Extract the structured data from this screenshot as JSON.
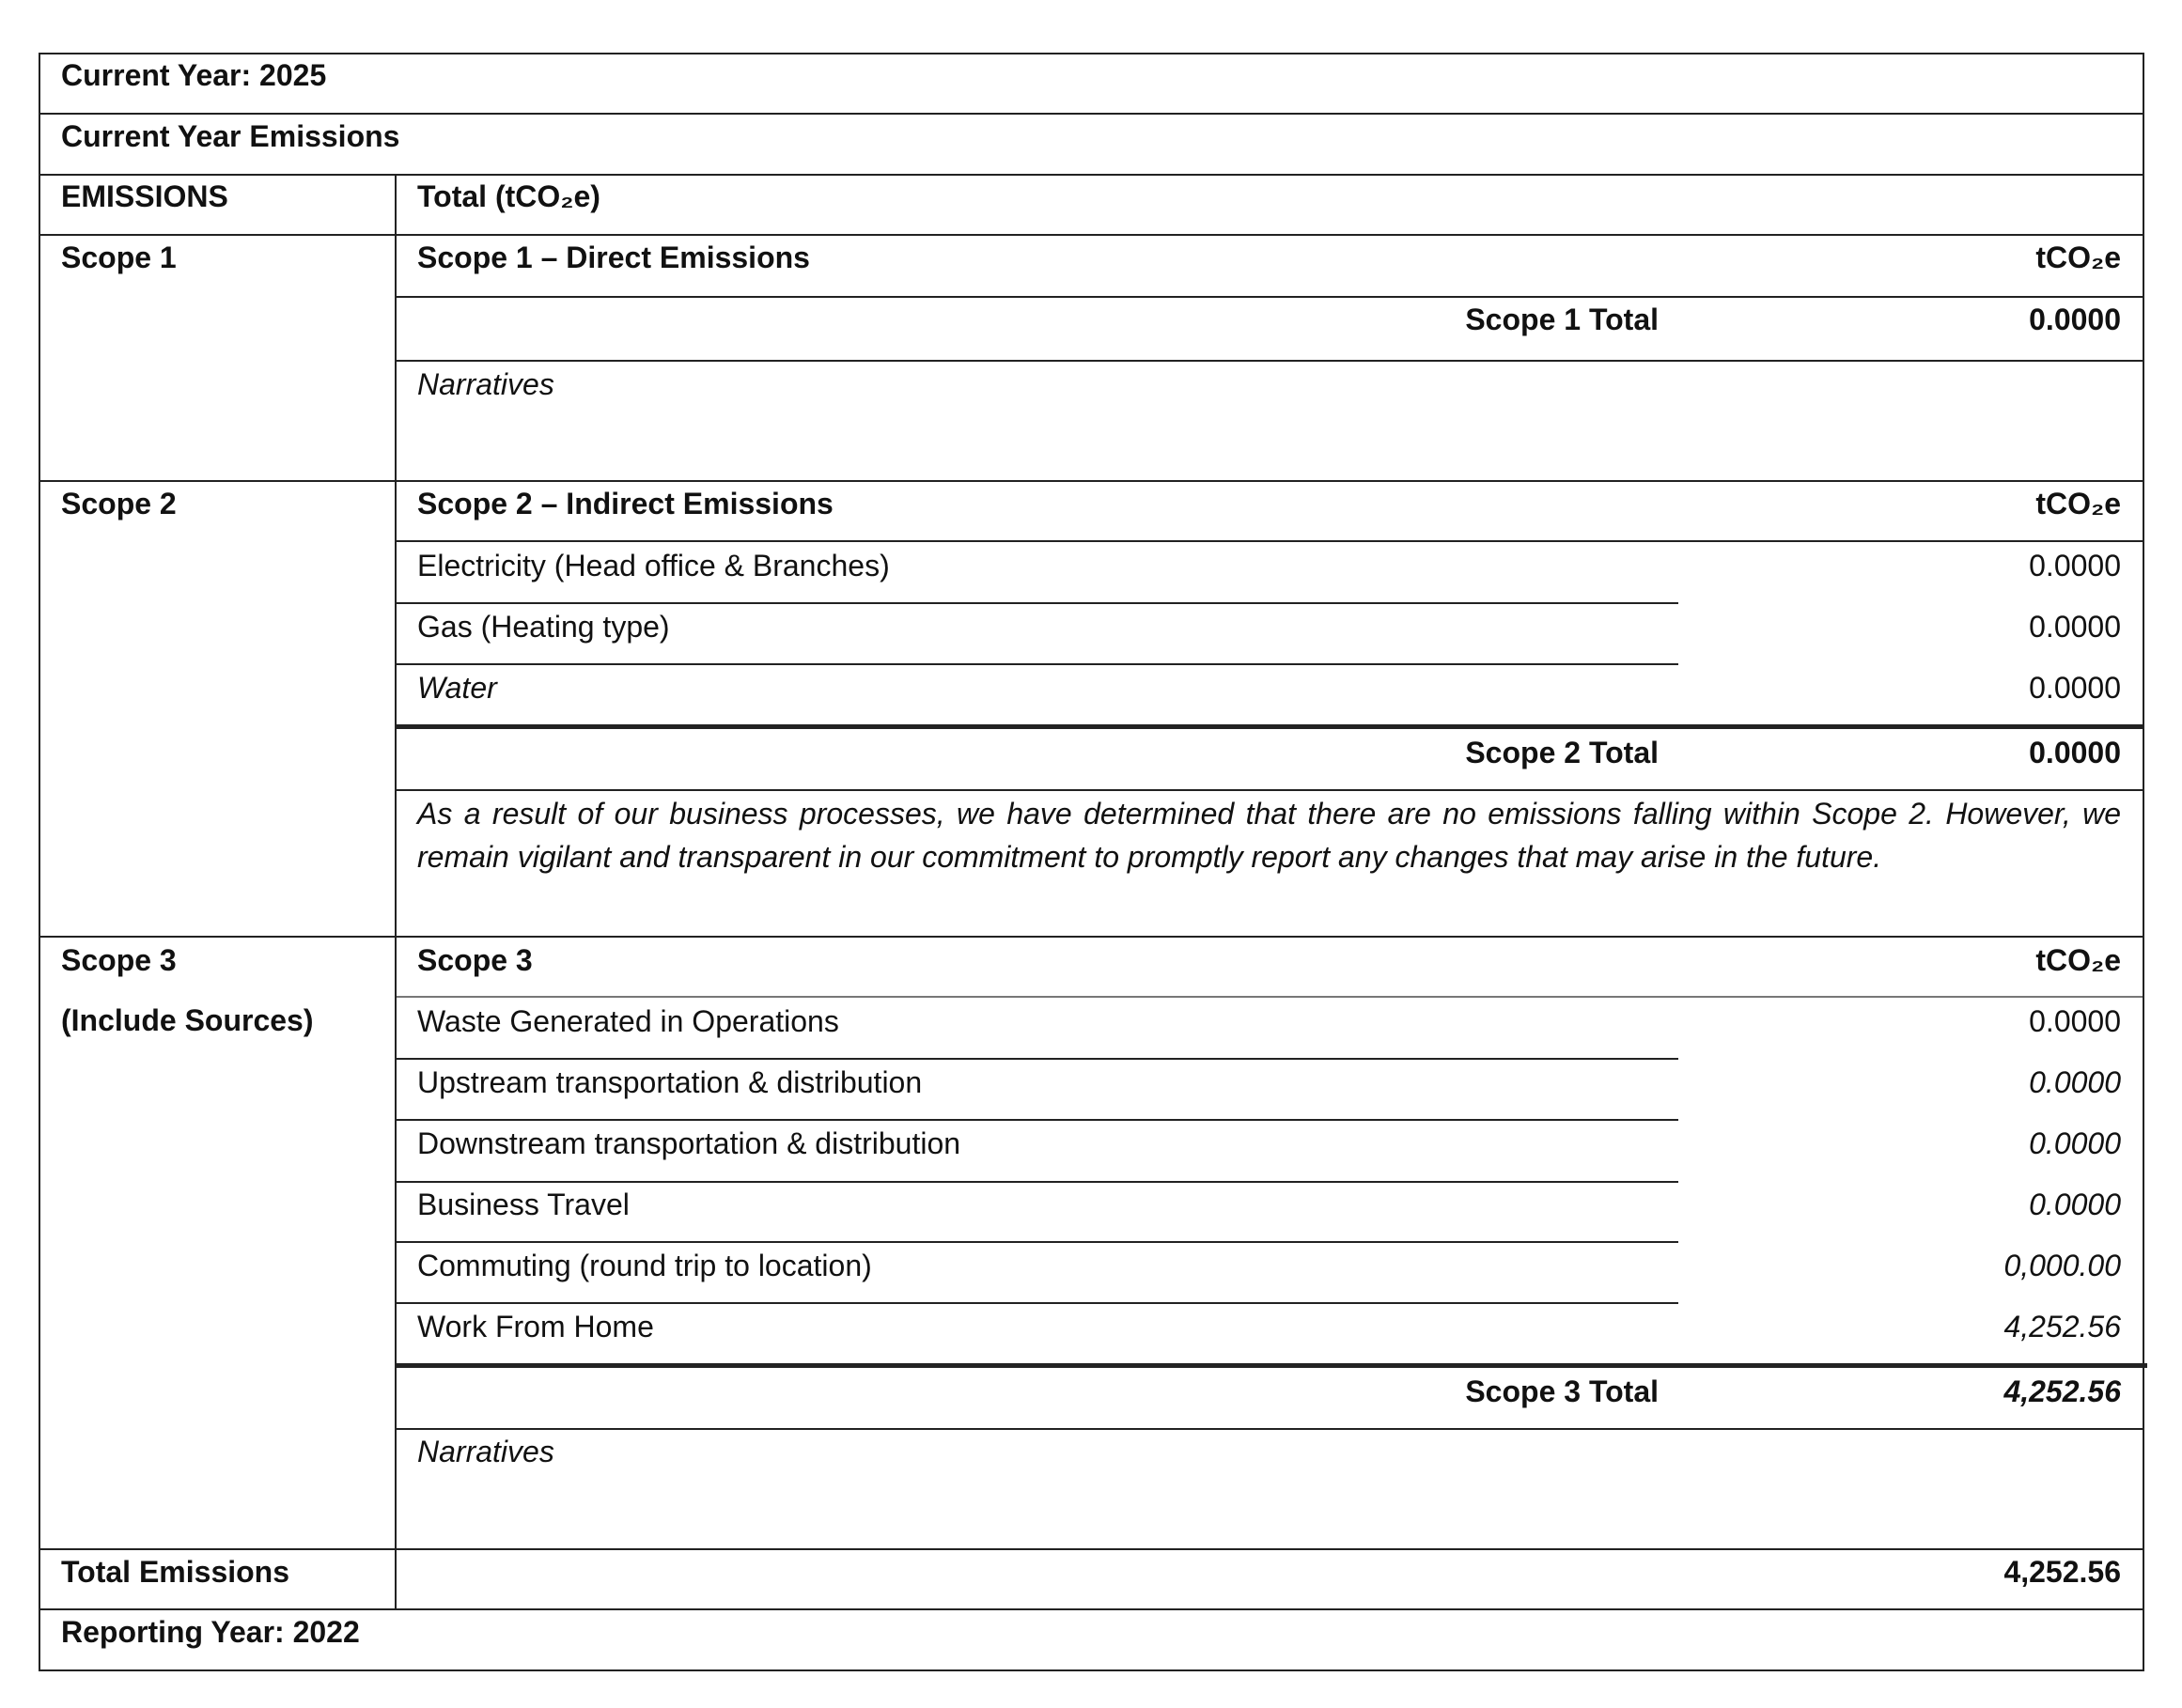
{
  "header": {
    "current_year": "Current Year: 2025",
    "section_title": "Current Year Emissions",
    "col_emissions": "EMISSIONS",
    "col_total": "Total (tCO₂e)"
  },
  "unit": "tCO₂e",
  "scope1": {
    "label": "Scope 1",
    "title": "Scope 1 – Direct Emissions",
    "total_label": "Scope 1 Total",
    "total_value": "0.0000",
    "narrative": "Narratives"
  },
  "scope2": {
    "label": "Scope 2",
    "title": "Scope 2 – Indirect Emissions",
    "items": [
      {
        "name": "Electricity (Head office & Branches)",
        "value": "0.0000"
      },
      {
        "name": "Gas (Heating type)",
        "value": "0.0000"
      },
      {
        "name": "Water",
        "value": "0.0000"
      }
    ],
    "total_label": "Scope 2 Total",
    "total_value": "0.0000",
    "narrative": "As a result of our business processes, we have determined that there are no emissions falling within Scope 2. However, we remain vigilant and transparent in our commitment to promptly report any changes that may arise in the future."
  },
  "scope3": {
    "label": "Scope 3",
    "sublabel": "(Include Sources)",
    "title": "Scope 3",
    "items": [
      {
        "name": "Waste Generated in Operations",
        "value": "0.0000"
      },
      {
        "name": "Upstream transportation & distribution",
        "value": "0.0000"
      },
      {
        "name": "Downstream transportation & distribution",
        "value": "0.0000"
      },
      {
        "name": "Business Travel",
        "value": "0.0000"
      },
      {
        "name": "Commuting (round trip to location)",
        "value": "0,000.00"
      },
      {
        "name": "Work From Home",
        "value": "4,252.56"
      }
    ],
    "total_label": "Scope 3 Total",
    "total_value": "4,252.56",
    "narrative": "Narratives"
  },
  "total": {
    "label": "Total Emissions",
    "value": "4,252.56"
  },
  "footer": {
    "reporting_year": "Reporting Year: 2022"
  }
}
